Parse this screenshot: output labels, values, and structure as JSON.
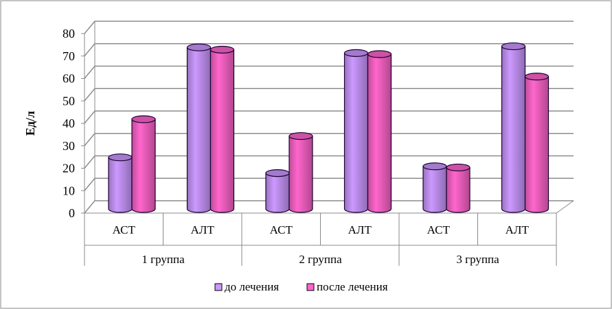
{
  "chart_data": {
    "type": "bar",
    "title": "",
    "ylabel": "Ед/л",
    "xlabel": "",
    "ylim": [
      0,
      80
    ],
    "yticks": [
      0,
      10,
      20,
      30,
      40,
      50,
      60,
      70,
      80
    ],
    "grid": true,
    "legend_position": "bottom",
    "categories": [
      "АСТ",
      "АЛТ",
      "АСТ",
      "АЛТ",
      "АСТ",
      "АЛТ"
    ],
    "groups": [
      "1 группа",
      "2 группа",
      "3 группа"
    ],
    "series": [
      {
        "name": "до лечения",
        "color": "#CC99FF",
        "values": [
          23,
          72,
          16,
          69.5,
          19,
          72.5
        ]
      },
      {
        "name": "после лечения",
        "color": "#FF66CC",
        "values": [
          40,
          71,
          32.5,
          69,
          18.5,
          59
        ]
      }
    ]
  }
}
